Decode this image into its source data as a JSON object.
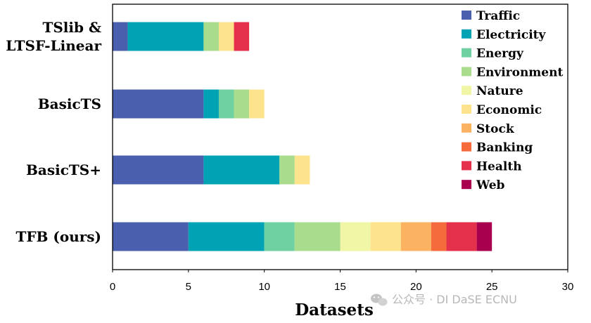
{
  "chart_data": {
    "type": "bar",
    "orientation": "horizontal",
    "stacked": true,
    "categories": [
      "TSlib & LTSF-Linear",
      "BasicTS",
      "BasicTS+",
      "TFB (ours)"
    ],
    "category_lines": [
      [
        "TSlib &",
        "LTSF-Linear"
      ],
      [
        "BasicTS"
      ],
      [
        "BasicTS+"
      ],
      [
        "TFB (ours)"
      ]
    ],
    "series": [
      {
        "name": "Traffic",
        "color": "#4a60ae",
        "values": [
          1,
          6,
          6,
          5
        ]
      },
      {
        "name": "Electricity",
        "color": "#00a3b4",
        "values": [
          5,
          1,
          5,
          5
        ]
      },
      {
        "name": "Energy",
        "color": "#6fd1a2",
        "values": [
          0,
          1,
          0,
          2
        ]
      },
      {
        "name": "Environment",
        "color": "#a9dc8d",
        "values": [
          1,
          1,
          1,
          3
        ]
      },
      {
        "name": "Nature",
        "color": "#f0f6a6",
        "values": [
          0,
          0,
          0,
          2
        ]
      },
      {
        "name": "Economic",
        "color": "#fde38b",
        "values": [
          1,
          1,
          1,
          2
        ]
      },
      {
        "name": "Stock",
        "color": "#fbb261",
        "values": [
          0,
          0,
          0,
          2
        ]
      },
      {
        "name": "Banking",
        "color": "#f56b3c",
        "values": [
          0,
          0,
          0,
          1
        ]
      },
      {
        "name": "Health",
        "color": "#e5304b",
        "values": [
          1,
          0,
          0,
          2
        ]
      },
      {
        "name": "Web",
        "color": "#a8004e",
        "values": [
          0,
          0,
          0,
          1
        ]
      }
    ],
    "xlabel": "Datasets",
    "ylabel": "",
    "xlim": [
      0,
      30
    ],
    "xticks": [
      0,
      5,
      10,
      15,
      20,
      25,
      30
    ],
    "grid": false,
    "legend_position": "top-right"
  },
  "watermark": {
    "icon": "wechat-icon",
    "text": "公众号 · DI DaSE ECNU"
  }
}
